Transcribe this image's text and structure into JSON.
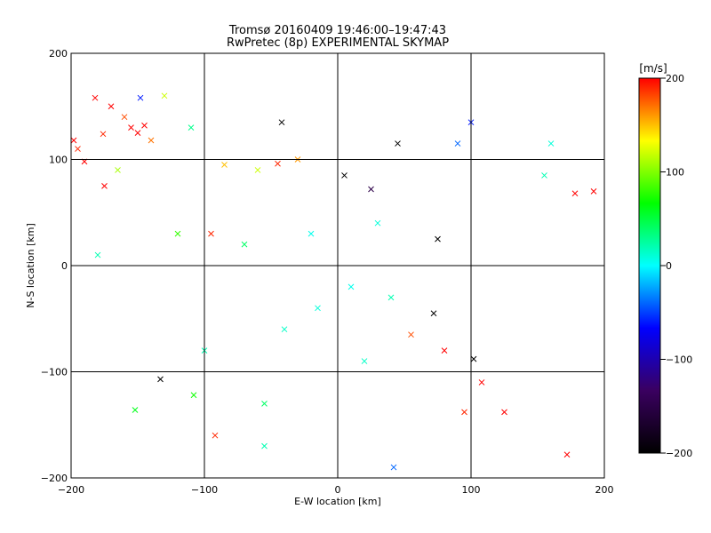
{
  "chart_data": {
    "type": "scatter",
    "title": "Tromsø 20160409 19:46:00–19:47:43",
    "subtitle": "RwPretec (8p) EXPERIMENTAL SKYMAP",
    "xlabel": "E-W location [km]",
    "ylabel": "N-S location [km]",
    "xlim": [
      -200,
      200
    ],
    "ylim": [
      -200,
      200
    ],
    "xticks": [
      "-200",
      "-100",
      "0",
      "100",
      "200"
    ],
    "yticks": [
      "-200",
      "-100",
      "0",
      "100",
      "200"
    ],
    "grid": true,
    "colorbar": {
      "label": "[m/s]",
      "range": [
        -200,
        200
      ],
      "ticks": [
        "-200",
        "-100",
        "0",
        "100",
        "200"
      ],
      "placement": "right",
      "colormap": [
        "#000000",
        "#3a0060",
        "#0000ff",
        "#00ffff",
        "#00ff00",
        "#ffff00",
        "#ff0000"
      ]
    },
    "markers": {
      "large": "x",
      "small": "dot"
    },
    "points": [
      {
        "x": -198,
        "y": 118,
        "v": 200,
        "m": "x"
      },
      {
        "x": -195,
        "y": 110,
        "v": 190,
        "m": "x"
      },
      {
        "x": -190,
        "y": 98,
        "v": 200,
        "m": "x"
      },
      {
        "x": -182,
        "y": 158,
        "v": 200,
        "m": "x"
      },
      {
        "x": -176,
        "y": 124,
        "v": 190,
        "m": "x"
      },
      {
        "x": -170,
        "y": 150,
        "v": 200,
        "m": "x"
      },
      {
        "x": -160,
        "y": 140,
        "v": 180,
        "m": "x"
      },
      {
        "x": -155,
        "y": 130,
        "v": 200,
        "m": "x"
      },
      {
        "x": -150,
        "y": 125,
        "v": 200,
        "m": "x"
      },
      {
        "x": -145,
        "y": 132,
        "v": 200,
        "m": "x"
      },
      {
        "x": -140,
        "y": 118,
        "v": 170,
        "m": "x"
      },
      {
        "x": -148,
        "y": 158,
        "v": -60,
        "m": "x"
      },
      {
        "x": -175,
        "y": 75,
        "v": 200,
        "m": "x"
      },
      {
        "x": -165,
        "y": 90,
        "v": 110,
        "m": "x"
      },
      {
        "x": -130,
        "y": 160,
        "v": 120,
        "m": "x"
      },
      {
        "x": -110,
        "y": 130,
        "v": 30,
        "m": "x"
      },
      {
        "x": -85,
        "y": 95,
        "v": 150,
        "m": "x"
      },
      {
        "x": -60,
        "y": 90,
        "v": 120,
        "m": "x"
      },
      {
        "x": -45,
        "y": 96,
        "v": 190,
        "m": "x"
      },
      {
        "x": -30,
        "y": 100,
        "v": 160,
        "m": "x"
      },
      {
        "x": -42,
        "y": 135,
        "v": -200,
        "m": "x"
      },
      {
        "x": 5,
        "y": 85,
        "v": -200,
        "m": "x"
      },
      {
        "x": 25,
        "y": 72,
        "v": -150,
        "m": "x"
      },
      {
        "x": 45,
        "y": 115,
        "v": -200,
        "m": "x"
      },
      {
        "x": 75,
        "y": 25,
        "v": -200,
        "m": "x"
      },
      {
        "x": 72,
        "y": -45,
        "v": -200,
        "m": "x"
      },
      {
        "x": 55,
        "y": -65,
        "v": 180,
        "m": "x"
      },
      {
        "x": 80,
        "y": -80,
        "v": 200,
        "m": "x"
      },
      {
        "x": 102,
        "y": -88,
        "v": -200,
        "m": "x"
      },
      {
        "x": 108,
        "y": -110,
        "v": 200,
        "m": "x"
      },
      {
        "x": 95,
        "y": -138,
        "v": 190,
        "m": "x"
      },
      {
        "x": 125,
        "y": -138,
        "v": 200,
        "m": "x"
      },
      {
        "x": 172,
        "y": -178,
        "v": 200,
        "m": "x"
      },
      {
        "x": 178,
        "y": 68,
        "v": 200,
        "m": "x"
      },
      {
        "x": 192,
        "y": 70,
        "v": 200,
        "m": "x"
      },
      {
        "x": -133,
        "y": -107,
        "v": -200,
        "m": "x"
      },
      {
        "x": -92,
        "y": -160,
        "v": 190,
        "m": "x"
      },
      {
        "x": -152,
        "y": -136,
        "v": 60,
        "m": "x"
      },
      {
        "x": -108,
        "y": -122,
        "v": 70,
        "m": "x"
      },
      {
        "x": 155,
        "y": 85,
        "v": 20,
        "m": "x"
      },
      {
        "x": 160,
        "y": 115,
        "v": 10,
        "m": "x"
      },
      {
        "x": 90,
        "y": 115,
        "v": -40,
        "m": "x"
      },
      {
        "x": 100,
        "y": 135,
        "v": -60,
        "m": "x"
      },
      {
        "x": -180,
        "y": 10,
        "v": 20,
        "m": "x"
      },
      {
        "x": -100,
        "y": -80,
        "v": 20,
        "m": "x"
      },
      {
        "x": -55,
        "y": -130,
        "v": 40,
        "m": "x"
      },
      {
        "x": 42,
        "y": -190,
        "v": -40,
        "m": "x"
      },
      {
        "x": -55,
        "y": -170,
        "v": 20,
        "m": "x"
      },
      {
        "x": -120,
        "y": 30,
        "v": 80,
        "m": "x"
      },
      {
        "x": -95,
        "y": 30,
        "v": 190,
        "m": "x"
      },
      {
        "x": -70,
        "y": 20,
        "v": 40,
        "m": "x"
      },
      {
        "x": 30,
        "y": 40,
        "v": 10,
        "m": "x"
      },
      {
        "x": -20,
        "y": 30,
        "v": 5,
        "m": "x"
      },
      {
        "x": 10,
        "y": -20,
        "v": 5,
        "m": "x"
      },
      {
        "x": -15,
        "y": -40,
        "v": 10,
        "m": "x"
      },
      {
        "x": 40,
        "y": -30,
        "v": 20,
        "m": "x"
      },
      {
        "x": -40,
        "y": -60,
        "v": 15,
        "m": "x"
      },
      {
        "x": 20,
        "y": -90,
        "v": 15,
        "m": "x"
      }
    ]
  }
}
